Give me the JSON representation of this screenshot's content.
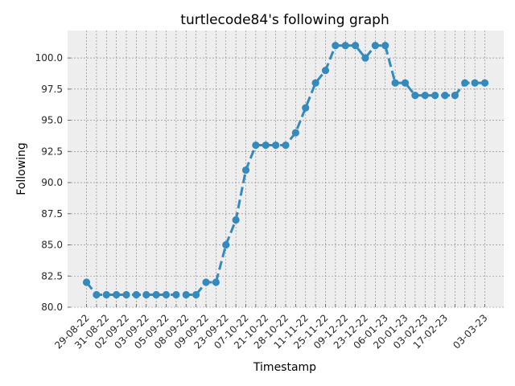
{
  "chart_data": {
    "type": "line",
    "title": "turtlecode84's following graph",
    "xlabel": "Timestamp",
    "ylabel": "Following",
    "ylim": [
      80.0,
      102.2
    ],
    "yticks": [
      "80.0",
      "82.5",
      "85.0",
      "87.5",
      "90.0",
      "92.5",
      "95.0",
      "97.5",
      "100.0"
    ],
    "grid": true,
    "line_style": "dashed",
    "marker": "circle",
    "colors": {
      "line": "#348ABD",
      "plot_background": "#EEEEEE",
      "grid": "#7F7F7F"
    },
    "x_tick_labels": [
      "29-08-22",
      "31-08-22",
      "02-09-22",
      "03-09-22",
      "05-09-22",
      "08-09-22",
      "09-09-22",
      "23-09-22",
      "07-10-22",
      "21-10-22",
      "28-10-22",
      "11-11-22",
      "25-11-22",
      "09-12-22",
      "23-12-22",
      "06-01-23",
      "20-01-23",
      "03-02-23",
      "17-02-23",
      "03-03-23"
    ],
    "x_tick_positions": [
      0,
      2,
      4,
      6,
      8,
      10,
      12,
      14,
      16,
      18,
      20,
      22,
      24,
      26,
      28,
      30,
      32,
      34,
      36,
      40
    ],
    "minor_tick_count": 41,
    "series": [
      {
        "values": [
          82,
          81,
          81,
          81,
          81,
          81,
          81,
          81,
          81,
          81,
          81,
          81,
          82,
          82,
          85,
          87,
          91,
          93,
          93,
          93,
          93,
          94,
          96,
          98,
          99,
          101,
          101,
          101,
          100,
          101,
          101,
          98,
          98,
          97,
          97,
          97,
          97,
          97,
          98,
          98,
          98
        ]
      }
    ]
  }
}
